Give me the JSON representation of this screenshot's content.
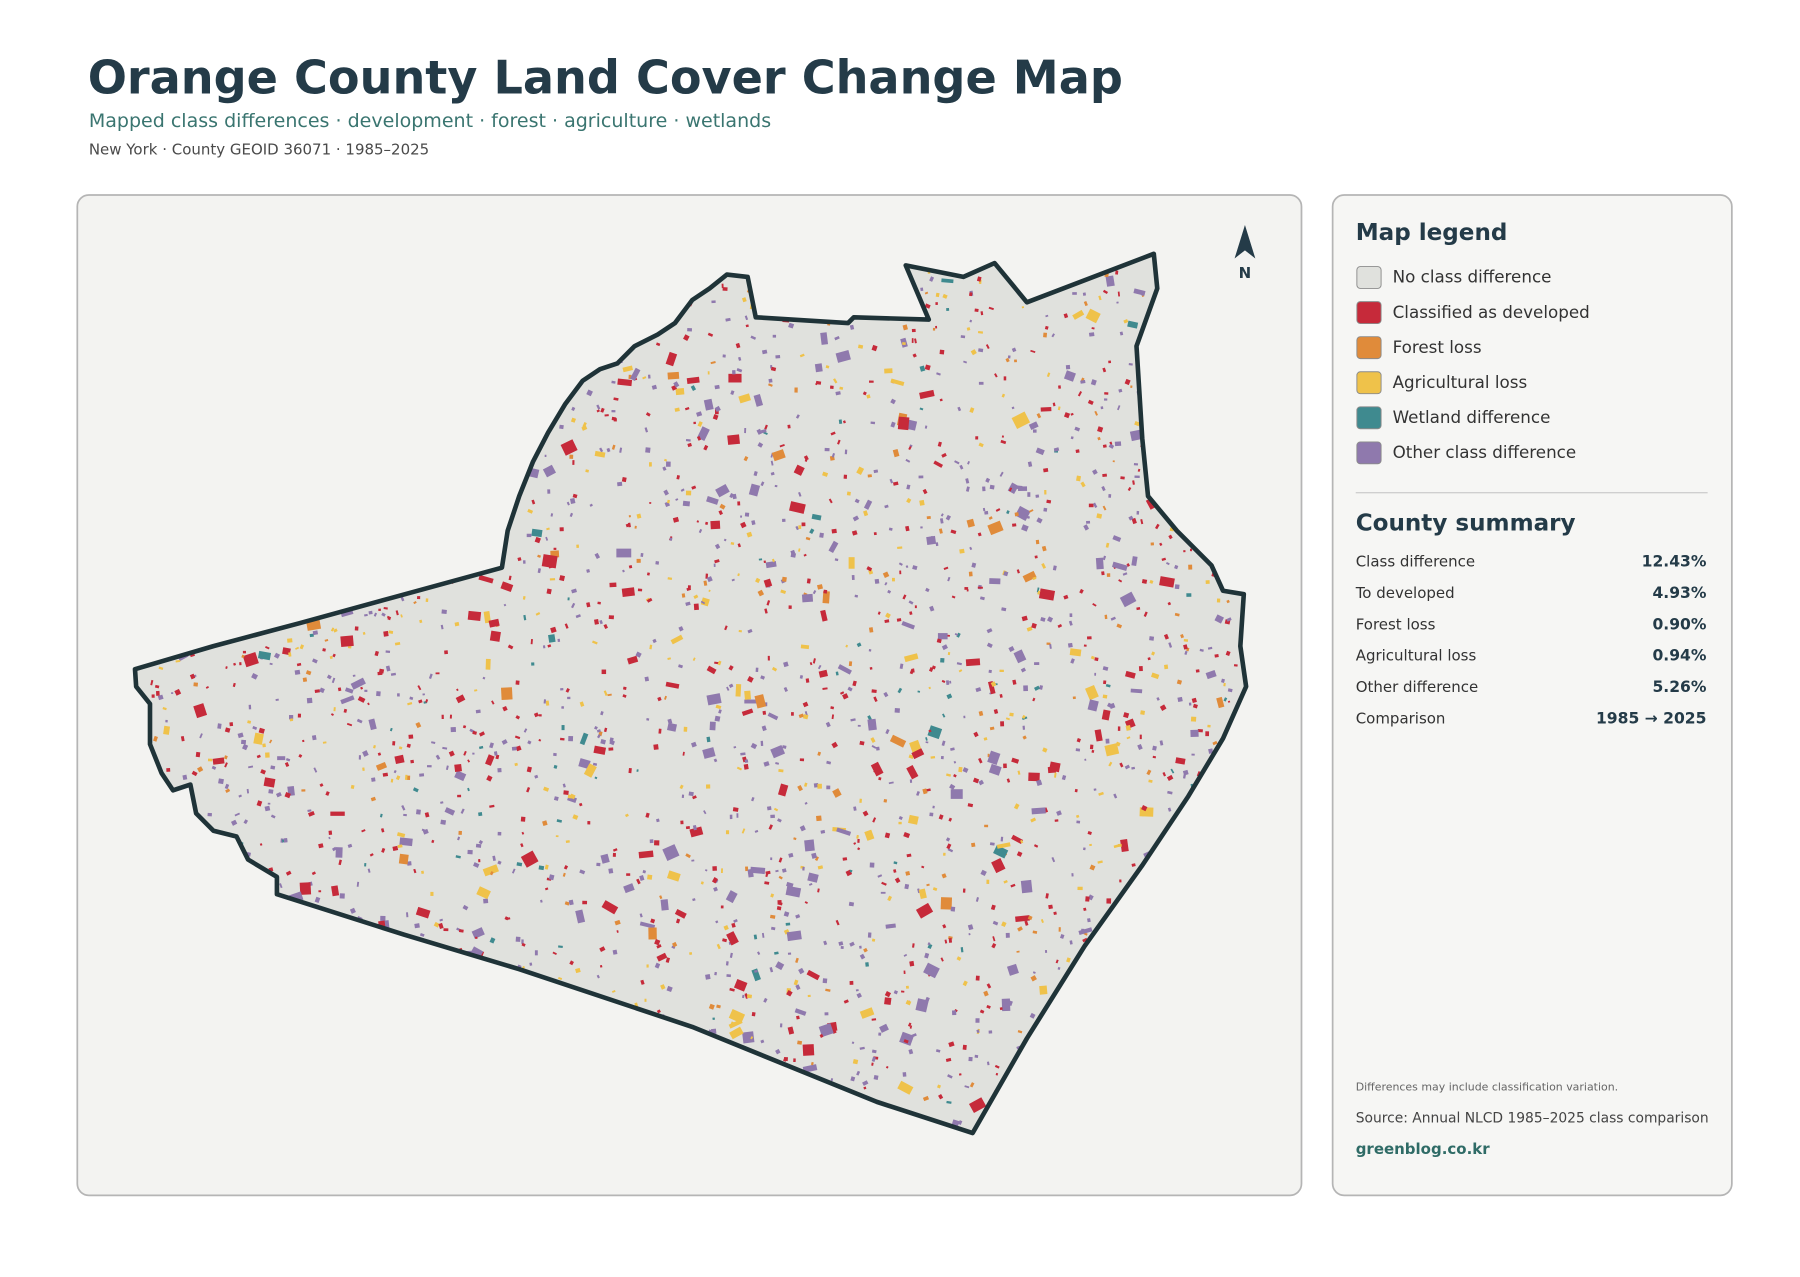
{
  "header": {
    "title": "Orange County Land Cover Change Map",
    "subtitle": "Mapped class differences · development · forest · agriculture · wetlands",
    "meta": "New York · County GEOID 36071 · 1985–2025"
  },
  "map": {
    "north_label": "N"
  },
  "legend": {
    "title": "Map legend",
    "items": [
      {
        "label": "No class difference",
        "color": "#e0e1dd"
      },
      {
        "label": "Classified as developed",
        "color": "#c62a3a"
      },
      {
        "label": "Forest loss",
        "color": "#e08b3a"
      },
      {
        "label": "Agricultural loss",
        "color": "#efc24a"
      },
      {
        "label": "Wetland difference",
        "color": "#3f8a8f"
      },
      {
        "label": "Other class difference",
        "color": "#8f79ad"
      }
    ]
  },
  "summary": {
    "title": "County summary",
    "rows": [
      [
        "Class difference",
        "12.43%"
      ],
      [
        "To developed",
        "4.93%"
      ],
      [
        "Forest loss",
        "0.90%"
      ],
      [
        "Agricultural loss",
        "0.94%"
      ],
      [
        "Other difference",
        "5.26%"
      ],
      [
        "Comparison",
        "1985 → 2025"
      ]
    ]
  },
  "footer": {
    "note": "Differences may include classification variation.",
    "source": "Source: Annual NLCD 1985–2025 class comparison",
    "site": "greenblog.co.kr"
  }
}
